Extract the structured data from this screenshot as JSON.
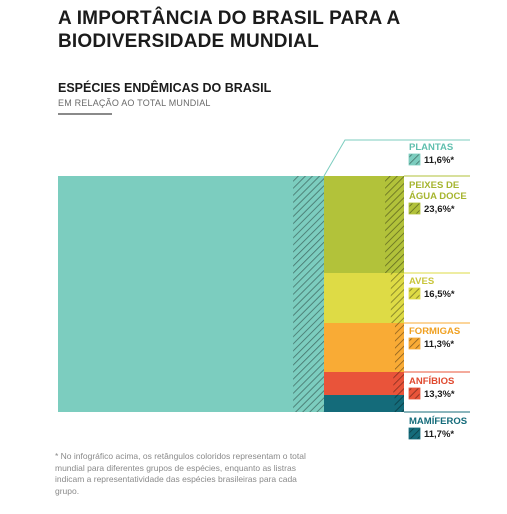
{
  "title": "A IMPORTÂNCIA DO BRASIL PARA A BIODIVERSIDADE MUNDIAL",
  "subtitle": "ESPÉCIES ENDÊMICAS DO BRASIL",
  "subsubtitle": "EM RELAÇÃO AO TOTAL MUNDIAL",
  "footnote": "* No infográfico acima, os retângulos coloridos representam o total mundial para diferentes grupos de espécies, enquanto as listras indicam a representatividade das espécies brasileiras para cada grupo.",
  "chart_data": {
    "type": "treemap",
    "unit": "%",
    "series": [
      {
        "name": "PLANTAS",
        "label_lines": [
          "PLANTAS"
        ],
        "value": 11.6,
        "value_label": "11,6%*",
        "color": "#7ccdbf",
        "label_color": "#5fbfae"
      },
      {
        "name": "PEIXES DE ÁGUA DOCE",
        "label_lines": [
          "PEIXES DE",
          "ÁGUA DOCE"
        ],
        "value": 23.6,
        "value_label": "23,6%*",
        "color": "#b2c23a",
        "label_color": "#a6b52f"
      },
      {
        "name": "AVES",
        "label_lines": [
          "AVES"
        ],
        "value": 16.5,
        "value_label": "16,5%*",
        "color": "#dedb45",
        "label_color": "#c9c53a"
      },
      {
        "name": "FORMIGAS",
        "label_lines": [
          "FORMIGAS"
        ],
        "value": 11.3,
        "value_label": "11,3%*",
        "color": "#f9ab35",
        "label_color": "#f0a020"
      },
      {
        "name": "ANFÍBIOS",
        "label_lines": [
          "ANFÍBIOS"
        ],
        "value": 13.3,
        "value_label": "13,3%*",
        "color": "#e9543a",
        "label_color": "#e0492f"
      },
      {
        "name": "MAMÍFEROS",
        "label_lines": [
          "MAMÍFEROS"
        ],
        "value": 11.7,
        "value_label": "11,7%*",
        "color": "#146b7a",
        "label_color": "#146b7a"
      }
    ]
  }
}
